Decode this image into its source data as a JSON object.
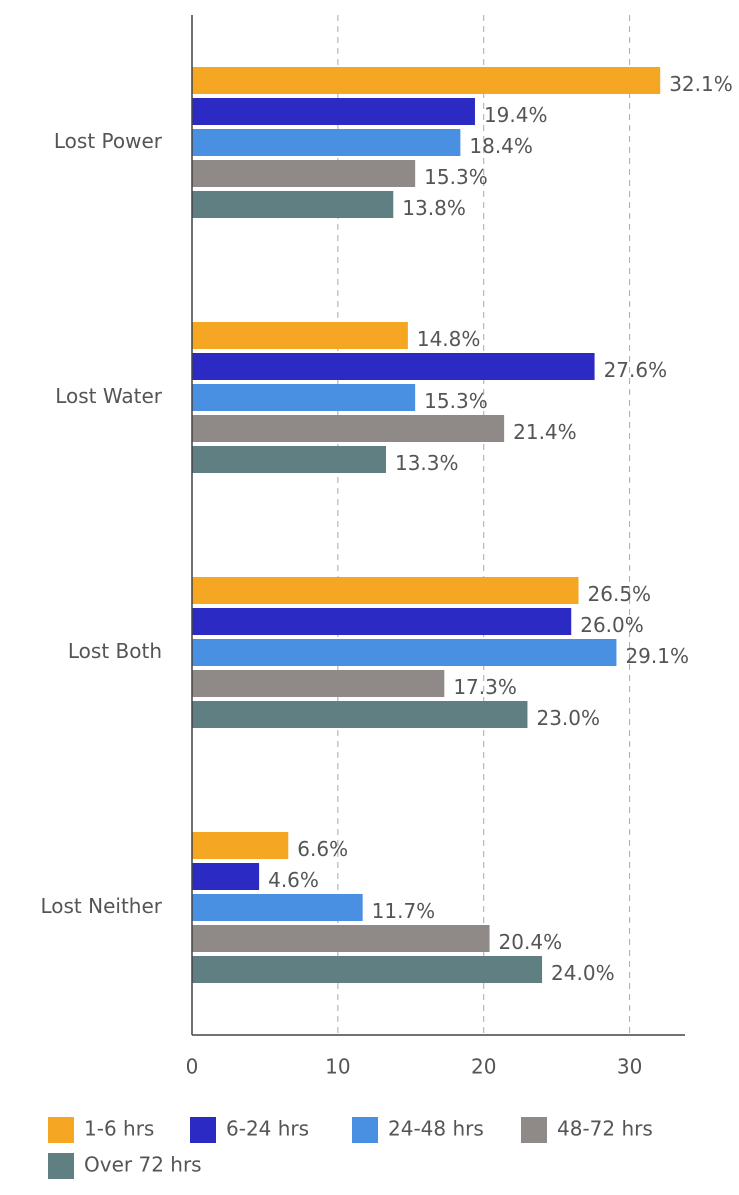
{
  "chart_data": {
    "type": "barh",
    "categories": [
      "Lost Power",
      "Lost Water",
      "Lost Both",
      "Lost Neither"
    ],
    "series": [
      {
        "name": "1-6 hrs",
        "color": "#f5a623",
        "values": [
          32.1,
          14.8,
          26.5,
          6.6
        ],
        "value_labels": [
          "32.1%",
          "14.8%",
          "26.5%",
          "6.6%"
        ]
      },
      {
        "name": "6-24 hrs",
        "color": "#2b2bc4",
        "values": [
          19.4,
          27.6,
          26.0,
          4.6
        ],
        "value_labels": [
          "19.4%",
          "27.6%",
          "26.0%",
          "4.6%"
        ]
      },
      {
        "name": "24-48 hrs",
        "color": "#4a90e2",
        "values": [
          18.4,
          15.3,
          29.1,
          11.7
        ],
        "value_labels": [
          "18.4%",
          "15.3%",
          "29.1%",
          "11.7%"
        ]
      },
      {
        "name": "48-72 hrs",
        "color": "#8f8a88",
        "values": [
          15.3,
          21.4,
          17.3,
          20.4
        ],
        "value_labels": [
          "15.3%",
          "21.4%",
          "17.3%",
          "20.4%"
        ]
      },
      {
        "name": "Over 72 hrs",
        "color": "#5f7f82",
        "values": [
          13.8,
          13.3,
          23.0,
          24.0
        ],
        "value_labels": [
          "13.8%",
          "13.3%",
          "23.0%",
          "24.0%"
        ]
      }
    ],
    "xlim": [
      0,
      33.8
    ],
    "xticks": [
      0,
      10,
      20,
      30
    ],
    "grid": true,
    "legend": "bottom"
  }
}
